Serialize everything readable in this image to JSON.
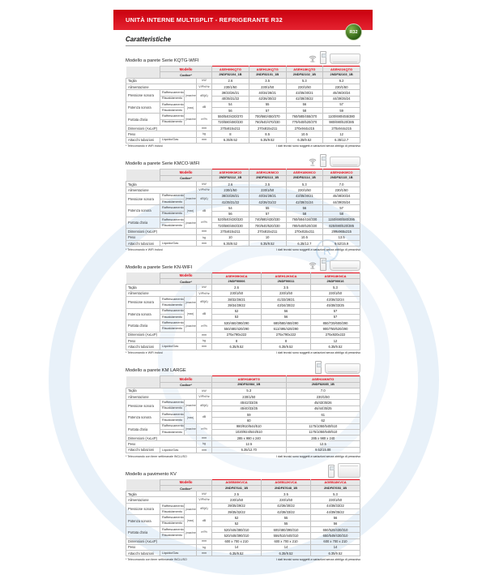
{
  "banner": {
    "title": "UNITÀ INTERNE MULTISPLIT - REFRIGERANTE R32"
  },
  "page": {
    "heading": "Caratteristiche",
    "badge": "R32"
  },
  "icons": {
    "r32_badge": "r32-badge",
    "wifi": "wifi-icon",
    "wifi_label": "WiFi",
    "remote": "remote-control-image",
    "wall_unit": "wall-unit-image",
    "floor_unit": "floor-unit-image"
  },
  "table_labels": {
    "modello": "Modello",
    "codice": "Codice*",
    "taglia": "Taglia",
    "kw": "kW",
    "alimentazione": "Alimentazione",
    "vphhz": "V/Ph/Hz",
    "pressione": "Pressione sonora",
    "potenza": "Potenza sonora",
    "portata": "Portata d'aria",
    "raff": "Raffrescamento",
    "risc": "Riscaldamento",
    "minmedmax": "(max/med/min)",
    "max": "(max)",
    "dba": "dB(A)",
    "db": "dB",
    "m3h": "m³/h",
    "dimensioni": "Dimensioni (AxLxP)",
    "mm": "mm",
    "peso": "Peso",
    "kg": "kg",
    "attacchi": "Attacchi tubazioni",
    "liquidogas": "Liquido/Gas"
  },
  "disclaimer": "I dati tecnici sono soggetti a variazioni senza obbligo di preavviso",
  "sections": [
    {
      "title": "Modello a parete Serie KQTG-WIFI",
      "footnote": "* Telecomando e WiFi inclusi",
      "models": [
        "ASEH09KQTG",
        "ASEH12KQTG",
        "ASEH18KQTG",
        "ASEH21KQTG"
      ],
      "codes": [
        "2NDF82104_1B",
        "2NDF82101_1B",
        "2NDF82102_1B",
        "2NDF82103_1B"
      ],
      "taglia": [
        "2.6",
        "3.5",
        "5.3",
        "6.2"
      ],
      "alimentazione": [
        "230/1/50",
        "230/1/50",
        "230/1/50",
        "230/1/50"
      ],
      "pressione_raff": [
        "39/33/26/21",
        "40/34/28/21",
        "43/35/30/21",
        "45/36/30/24"
      ],
      "pressione_risc": [
        "40/35/31/22",
        "42/36/30/22",
        "42/38/35/22",
        "44/39/35/24"
      ],
      "potenza_raff": [
        "54",
        "55",
        "56",
        "57"
      ],
      "potenza_risc": [
        "56",
        "57",
        "58",
        "59"
      ],
      "portata_raff": [
        "550/540/430/370",
        "700/560/450/370",
        "760/580/455/370",
        "1100/690/455/380"
      ],
      "portata_risc": [
        "720/580/480/330",
        "760/640/470/330",
        "770/640/520/370",
        "980/690/520/385"
      ],
      "dimensioni": [
        "270x815x211",
        "270x815x211",
        "270x944x215",
        "270x944x215"
      ],
      "peso": [
        "8",
        "8.5",
        "10.5",
        "12"
      ],
      "attacchi": [
        "6.35/9.52",
        "6.35/9.52",
        "6.35/9.52",
        "6.35/12.7"
      ]
    },
    {
      "title": "Modello a parete Serie KMCO-WIFI",
      "footnote": "* Telecomando e WiFi inclusi",
      "models": [
        "ASEH09KMCO",
        "ASEH12KMCO",
        "ASEH18KMCO",
        "ASEH24KMCO"
      ],
      "codes": [
        "2NDF82112_1B",
        "2NDF82113_1B",
        "2NDF82114_1B",
        "2NDF82115_1B"
      ],
      "taglia": [
        "2.6",
        "3.5",
        "5.3",
        "7.0"
      ],
      "alimentazione": [
        "230/1/50",
        "230/1/50",
        "230/1/50",
        "230/1/50"
      ],
      "pressione_raff": [
        "38/33/28/21",
        "40/34/28/21",
        "43/35/30/21",
        "45/38/30/24"
      ],
      "pressione_risc": [
        "41/35/31/22",
        "42/36/31/22",
        "42/38/31/24",
        "44/39/35/24"
      ],
      "potenza_raff": [
        "54",
        "55",
        "56",
        "57"
      ],
      "potenza_risc": [
        "56",
        "57",
        "58",
        "58"
      ],
      "portata_raff": [
        "520/540/430/320",
        "740/580/430/330",
        "760/584/434/330",
        "1150/690/580/395"
      ],
      "portata_risc": [
        "720/580/460/330",
        "700/640/520/330",
        "780/640/520/330",
        "825/690/520/385"
      ],
      "dimensioni": [
        "270x815x211",
        "270x815x211",
        "270x815x211",
        "299x965x215"
      ],
      "peso": [
        "10",
        "10",
        "10.5",
        "13.5"
      ],
      "attacchi": [
        "6.35/9.52",
        "6.35/9.52",
        "6.35/12.7",
        "9.52/15.9"
      ]
    },
    {
      "title": "Modello a parete Serie KN-WIFI",
      "footnote": "* Telecomando e WiFi inclusi",
      "models": [
        "ASEH09KNCA",
        "ASEH12KNCA",
        "ASEH18KNCA"
      ],
      "codes": [
        "2NDF90006",
        "2NDF90011",
        "2NDF90016"
      ],
      "taglia": [
        "2.6",
        "3.5",
        "5.3"
      ],
      "alimentazione": [
        "230/1/50",
        "230/1/50",
        "230/1/50"
      ],
      "pressione_raff": [
        "38/32/26/21",
        "41/33/28/21",
        "43/36/32/24"
      ],
      "pressione_risc": [
        "39/34/29/22",
        "43/34/30/22",
        "45/38/33/25"
      ],
      "potenza_raff": [
        "52",
        "56",
        "57"
      ],
      "potenza_risc": [
        "53",
        "56",
        "57"
      ],
      "portata_raff": [
        "530/460/390/290",
        "680/580/450/290",
        "850/720/600/290"
      ],
      "portata_risc": [
        "550/480/420/290",
        "612/495/420/290",
        "900/750/620/290"
      ],
      "dimensioni": [
        "275x790x222",
        "275x790x222",
        "275x920x222"
      ],
      "peso": [
        "8",
        "8",
        "12"
      ],
      "attacchi": [
        "6.35/9.52",
        "6.35/9.52",
        "6.35/9.52"
      ]
    },
    {
      "title": "Modello a parete KM LARGE",
      "footnote": "* Telecomando con timer settimanale INCLUSO",
      "models": [
        "ASEH18KMTG",
        "ASEH24KMTG"
      ],
      "codes": [
        "2NDF82084_1B",
        "2NDF82085_1B"
      ],
      "taglia": [
        "5.3",
        "7.0"
      ],
      "alimentazione": [
        "230/1/50",
        "230/1/50"
      ],
      "pressione_raff": [
        "45/42/33/26",
        "45/43/35/26"
      ],
      "pressione_risc": [
        "45/40/33/25",
        "46/44/35/25"
      ],
      "potenza_raff": [
        "59",
        "61"
      ],
      "potenza_risc": [
        "60",
        "62"
      ],
      "portata_raff": [
        "980/910/544/510",
        "1175/1050/540/510"
      ],
      "portata_risc": [
        "1020/924/544/510",
        "1175/1050/640/510"
      ],
      "dimensioni": [
        "285 x 980 x 240",
        "285 x 980 x 240"
      ],
      "peso": [
        "12.5",
        "12.5"
      ],
      "attacchi": [
        "6.35/12.70",
        "9.52/15.88"
      ]
    },
    {
      "title": "Modello a pavimento KV",
      "footnote": "* Telecomando con timer settimanale INCLUSO",
      "models": [
        "AGEB09KVCA",
        "AGEB12KVCA",
        "AGEB18KVCA"
      ],
      "codes": [
        "2NDF87641_1B",
        "2NDF87648_1B",
        "2NDF87653_1B"
      ],
      "taglia": [
        "2.5",
        "3.5",
        "5.3"
      ],
      "alimentazione": [
        "230/1/50",
        "230/1/50",
        "230/1/50"
      ],
      "pressione_raff": [
        "39/35/29/22",
        "42/36/30/22",
        "44/38/33/22"
      ],
      "pressione_risc": [
        "39/35/32/22",
        "42/38/33/22",
        "44/39/35/22"
      ],
      "potenza_raff": [
        "52",
        "55",
        "56"
      ],
      "potenza_risc": [
        "52",
        "55",
        "56"
      ],
      "portata_raff": [
        "520/446/380/310",
        "600/480/390/310",
        "650/520/430/310"
      ],
      "portata_risc": [
        "520/448/390/310",
        "556/510/440/310",
        "650/549/430/310"
      ],
      "dimensioni": [
        "600 x 700 x 210",
        "600 x 700 x 210",
        "600 x 700 x 210"
      ],
      "peso": [
        "14",
        "14",
        "14"
      ],
      "attacchi": [
        "6.35/9.52",
        "6.35/9.52",
        "6.35/9.52"
      ]
    }
  ]
}
